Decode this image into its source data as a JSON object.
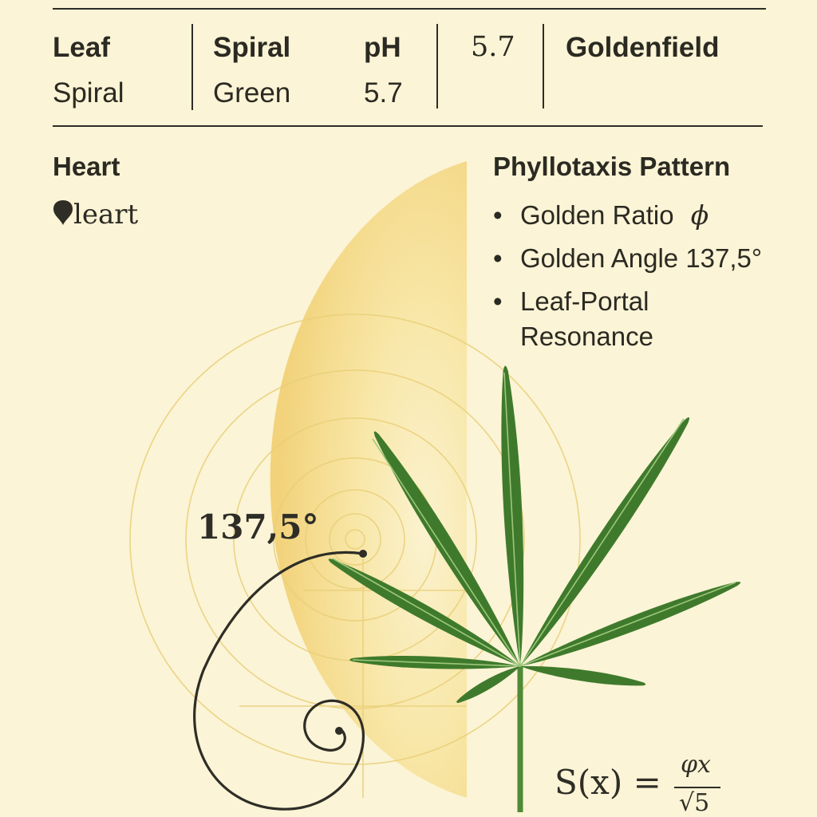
{
  "header": {
    "col1": {
      "label": "Leaf",
      "value": "Spiral"
    },
    "col2": {
      "label": "Spiral",
      "value": "Green"
    },
    "col3": {
      "label": "pH",
      "value": "5.7"
    },
    "col4": {
      "value": "5.7"
    },
    "col5": {
      "label": "Goldenfield"
    }
  },
  "left_section": {
    "title": "Heart",
    "subtitle_icon": "heart-icon",
    "subtitle": "leart"
  },
  "right_section": {
    "title": "Phyllotaxis Pattern",
    "items": [
      {
        "text": "Golden Ratio",
        "symbol": "ϕ"
      },
      {
        "text": "Golden Angle 137,5°"
      },
      {
        "text": "Leaf-Portal Resonance"
      }
    ]
  },
  "illustration": {
    "angle_label": "137,5°",
    "formula": {
      "lhs": "S(x) =",
      "numerator": "φx",
      "denominator": "√5"
    },
    "icons": [
      "golden-spiral-icon",
      "cannabis-leaf-icon"
    ],
    "colors": {
      "background": "#fbf4d6",
      "gold": "#f4d77a",
      "leaf": "#3f7a2c",
      "ink": "#2e2d26"
    }
  }
}
